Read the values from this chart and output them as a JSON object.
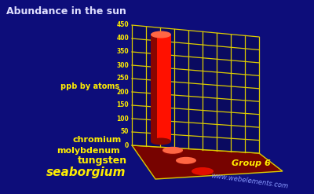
{
  "title": "Abundance in the sun",
  "ylabel": "ppb by atoms",
  "group_label": "Group 6",
  "website": "www.webelements.com",
  "elements": [
    "chromium",
    "molybdenum",
    "tungsten",
    "seaborgium"
  ],
  "values": [
    400,
    5,
    2,
    0
  ],
  "ymax": 450,
  "yticks": [
    0,
    50,
    100,
    150,
    200,
    250,
    300,
    350,
    400,
    450
  ],
  "bg_color": "#0d0d7a",
  "grid_color": "#ddcc00",
  "label_color": "#ffee00",
  "title_color": "#e0e0ff",
  "website_color": "#8899ff",
  "bar_bright": "#ff1100",
  "bar_mid": "#cc0a00",
  "bar_dark": "#880500",
  "floor_color": "#880500",
  "floor_highlight": "#cc2200"
}
